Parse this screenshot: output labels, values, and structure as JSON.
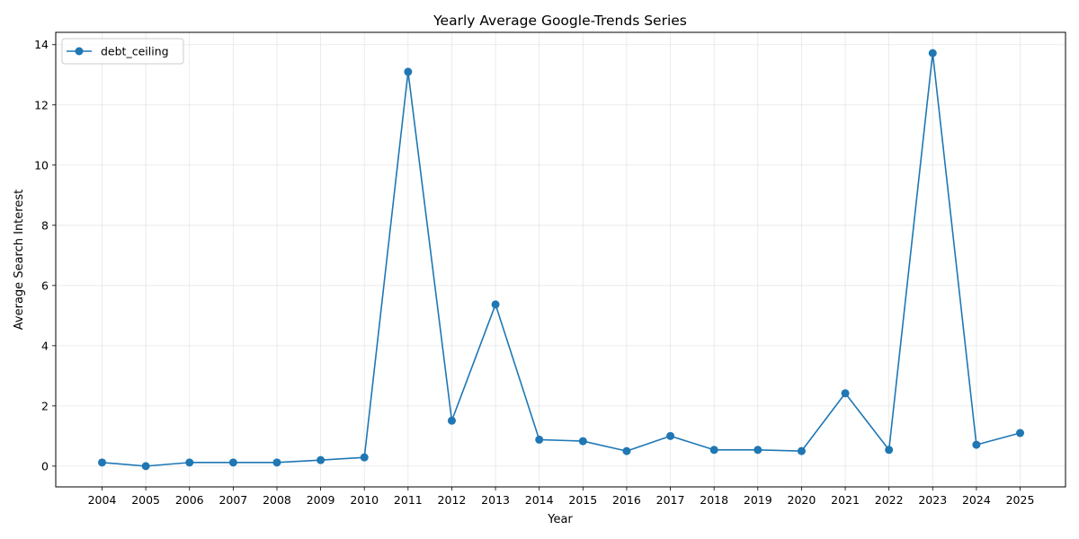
{
  "chart_data": {
    "type": "line",
    "title": "Yearly Average Google-Trends Series",
    "xlabel": "Year",
    "ylabel": "Average Search Interest",
    "categories": [
      "2004",
      "2005",
      "2006",
      "2007",
      "2008",
      "2009",
      "2010",
      "2011",
      "2012",
      "2013",
      "2014",
      "2015",
      "2016",
      "2017",
      "2018",
      "2019",
      "2020",
      "2021",
      "2022",
      "2023",
      "2024",
      "2025"
    ],
    "series": [
      {
        "name": "debt_ceiling",
        "color": "#1f77b4",
        "marker": "circle",
        "values": [
          0.12,
          0.0,
          0.12,
          0.12,
          0.12,
          0.2,
          0.29,
          13.1,
          1.51,
          5.37,
          0.88,
          0.83,
          0.5,
          1.0,
          0.54,
          0.54,
          0.5,
          2.42,
          0.54,
          13.72,
          0.71,
          1.1
        ]
      }
    ],
    "ylim": [
      -0.69,
      14.41
    ],
    "yticks": [
      0,
      2,
      4,
      6,
      8,
      10,
      12,
      14
    ],
    "grid": true,
    "legend_position": "upper left"
  }
}
